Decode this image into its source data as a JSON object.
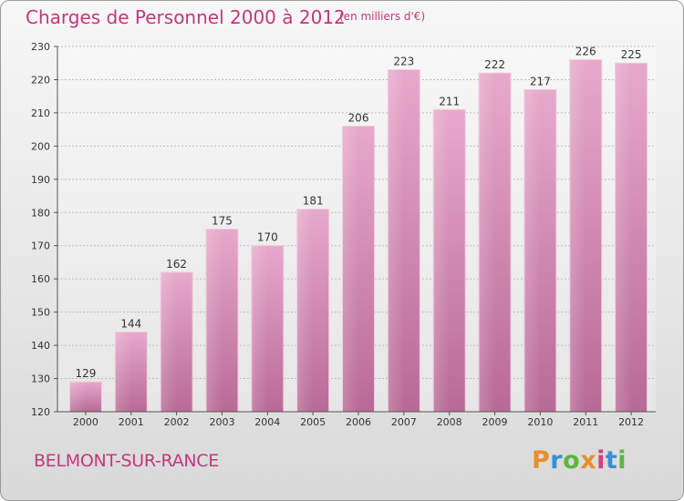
{
  "chart_data": {
    "type": "bar",
    "title": "Charges de Personnel 2000 à 2012",
    "subtitle": "(en milliers d'€)",
    "xlabel": "",
    "ylabel": "",
    "categories": [
      "2000",
      "2001",
      "2002",
      "2003",
      "2004",
      "2005",
      "2006",
      "2007",
      "2008",
      "2009",
      "2010",
      "2011",
      "2012"
    ],
    "values": [
      129,
      144,
      162,
      175,
      170,
      181,
      206,
      223,
      211,
      222,
      217,
      226,
      225
    ],
    "ylim": [
      120,
      230
    ],
    "yticks": [
      120,
      130,
      140,
      150,
      160,
      170,
      180,
      190,
      200,
      210,
      220,
      230
    ],
    "grid": true,
    "bar_color": "#d477a6"
  },
  "commune_name": "BELMONT-SUR-RANCE",
  "logo": {
    "text": "Proxiti",
    "letter_colors": [
      "#e8902a",
      "#3a8fd0",
      "#5cb53c",
      "#e8902a",
      "#d8407a",
      "#3a8fd0",
      "#5cb53c"
    ]
  }
}
